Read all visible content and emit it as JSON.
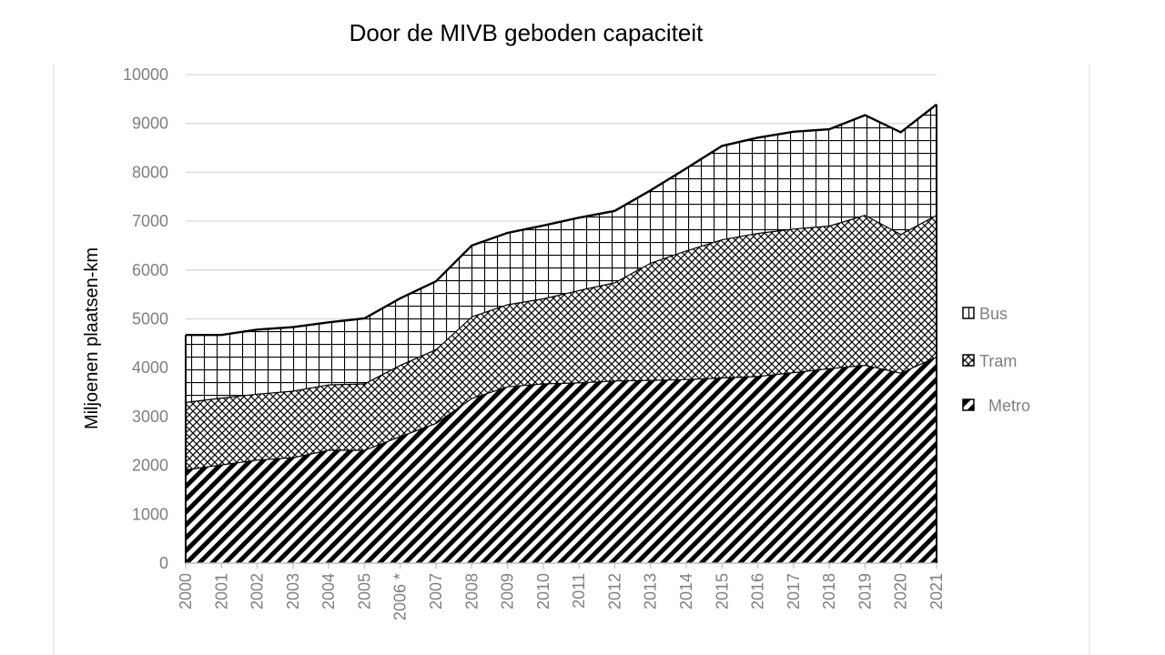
{
  "chart_data": {
    "type": "area",
    "stacked": true,
    "title": "Door de MIVB geboden capaciteit",
    "ylabel": "Miljoenen plaatsen-km",
    "xlabel": "",
    "ylim": [
      0,
      10000
    ],
    "yticks": [
      0,
      1000,
      2000,
      3000,
      4000,
      5000,
      6000,
      7000,
      8000,
      9000,
      10000
    ],
    "grid": true,
    "legend_position": "right",
    "categories": [
      "2000",
      "2001",
      "2002",
      "2003",
      "2004",
      "2005",
      "2006 *",
      "2007",
      "2008",
      "2009",
      "2010",
      "2011",
      "2012",
      "2013",
      "2014",
      "2015",
      "2016",
      "2017",
      "2018",
      "2019",
      "2020",
      "2021"
    ],
    "series": [
      {
        "name": "Metro",
        "pattern": "diagonal-stripes",
        "values": [
          1920,
          2020,
          2120,
          2170,
          2320,
          2320,
          2600,
          2870,
          3380,
          3620,
          3680,
          3700,
          3740,
          3750,
          3770,
          3800,
          3830,
          3910,
          3990,
          4060,
          3900,
          4230
        ]
      },
      {
        "name": "Tram",
        "pattern": "cross-hatch",
        "values": [
          1380,
          1370,
          1350,
          1360,
          1340,
          1360,
          1460,
          1510,
          1670,
          1680,
          1740,
          1890,
          2010,
          2400,
          2630,
          2830,
          2930,
          2940,
          2920,
          3070,
          2840,
          2900
        ]
      },
      {
        "name": "Bus",
        "pattern": "grid",
        "values": [
          1370,
          1280,
          1310,
          1300,
          1270,
          1330,
          1360,
          1390,
          1450,
          1460,
          1490,
          1480,
          1460,
          1480,
          1680,
          1910,
          1950,
          1980,
          1970,
          2040,
          2080,
          2260
        ]
      }
    ],
    "legend_order": [
      "Bus",
      "Tram",
      "Metro"
    ],
    "colors": {
      "axis_text": "#7f7f7f",
      "gridline": "#d9d9d9",
      "outline": "#000000"
    }
  }
}
